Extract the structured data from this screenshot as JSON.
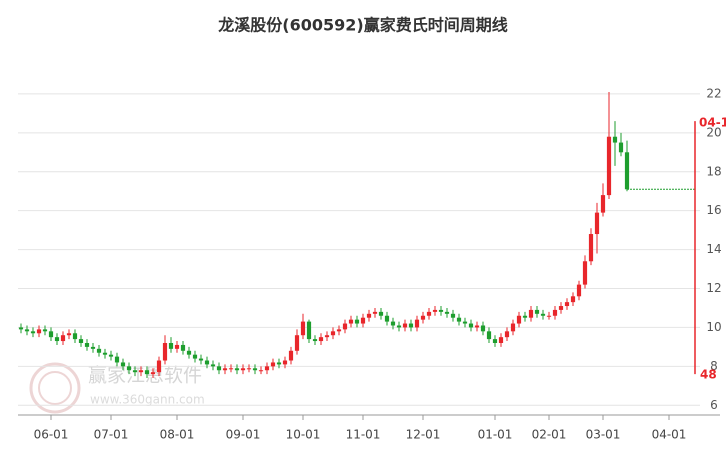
{
  "chart_data": {
    "type": "candlestick",
    "title": "龙溪股份(600592)赢家费氏时间周期线",
    "categories": [
      null,
      null,
      null,
      null,
      null,
      "06-01",
      null,
      null,
      null,
      null,
      null,
      null,
      null,
      null,
      null,
      "07-01",
      null,
      null,
      null,
      null,
      null,
      null,
      null,
      null,
      null,
      null,
      "08-01",
      null,
      null,
      null,
      null,
      null,
      null,
      null,
      null,
      null,
      null,
      "09-01",
      null,
      null,
      null,
      null,
      null,
      null,
      null,
      null,
      null,
      "10-01",
      null,
      null,
      null,
      null,
      null,
      null,
      null,
      null,
      null,
      "11-01",
      null,
      null,
      null,
      null,
      null,
      null,
      null,
      null,
      null,
      "12-01",
      null,
      null,
      null,
      null,
      null,
      null,
      null,
      null,
      null,
      null,
      null,
      "01-01",
      null,
      null,
      null,
      null,
      null,
      null,
      null,
      null,
      "02-01",
      null,
      null,
      null,
      null,
      null,
      null,
      null,
      null,
      "03-01",
      null,
      null,
      null,
      null
    ],
    "xticks": [
      {
        "value": 5,
        "label": "06-01"
      },
      {
        "value": 15,
        "label": "07-01"
      },
      {
        "value": 26,
        "label": "08-01"
      },
      {
        "value": 37,
        "label": "09-01"
      },
      {
        "value": 47,
        "label": "10-01"
      },
      {
        "value": 57,
        "label": "11-01"
      },
      {
        "value": 67,
        "label": "12-01"
      },
      {
        "value": 79,
        "label": "01-01"
      },
      {
        "value": 88,
        "label": "02-01"
      },
      {
        "value": 97,
        "label": "03-01"
      },
      {
        "value": 108,
        "label": "04-01"
      }
    ],
    "xlim": [
      -0.5,
      112.5
    ],
    "open": [
      10.0,
      9.9,
      9.8,
      9.7,
      9.9,
      9.8,
      9.5,
      9.3,
      9.6,
      9.7,
      9.4,
      9.2,
      9.0,
      8.9,
      8.7,
      8.6,
      8.5,
      8.2,
      8.0,
      7.8,
      7.7,
      7.8,
      7.6,
      7.7,
      8.3,
      9.2,
      8.9,
      9.1,
      8.8,
      8.6,
      8.4,
      8.3,
      8.1,
      8.0,
      7.8,
      7.9,
      7.9,
      7.8,
      7.9,
      7.9,
      7.8,
      7.8,
      8.0,
      8.2,
      8.1,
      8.3,
      8.8,
      9.6,
      10.3,
      9.4,
      9.3,
      9.5,
      9.6,
      9.8,
      9.9,
      10.2,
      10.4,
      10.2,
      10.5,
      10.7,
      10.8,
      10.6,
      10.3,
      10.1,
      10.0,
      10.2,
      10.0,
      10.4,
      10.6,
      10.8,
      10.9,
      10.8,
      10.7,
      10.5,
      10.3,
      10.2,
      10.0,
      10.1,
      9.8,
      9.4,
      9.2,
      9.5,
      9.8,
      10.2,
      10.6,
      10.5,
      10.9,
      10.7,
      10.6,
      10.6,
      10.9,
      11.1,
      11.3,
      11.6,
      12.2,
      13.4,
      14.8,
      15.9,
      16.8,
      19.8,
      19.5,
      19.0
    ],
    "high": [
      10.2,
      10.1,
      10.0,
      10.1,
      10.1,
      10.0,
      9.7,
      9.8,
      9.9,
      9.9,
      9.6,
      9.4,
      9.2,
      9.1,
      8.9,
      8.8,
      8.7,
      8.4,
      8.2,
      8.0,
      8.0,
      8.0,
      7.9,
      8.5,
      9.6,
      9.5,
      9.3,
      9.3,
      9.0,
      8.8,
      8.6,
      8.5,
      8.3,
      8.2,
      8.1,
      8.1,
      8.1,
      8.1,
      8.1,
      8.1,
      8.0,
      8.2,
      8.4,
      8.4,
      8.5,
      9.0,
      9.9,
      10.7,
      10.4,
      9.6,
      9.7,
      9.8,
      10.0,
      10.1,
      10.4,
      10.6,
      10.6,
      10.7,
      10.9,
      11.0,
      11.0,
      10.8,
      10.5,
      10.3,
      10.4,
      10.4,
      10.6,
      10.8,
      11.0,
      11.1,
      11.1,
      11.0,
      10.9,
      10.7,
      10.5,
      10.4,
      10.3,
      10.3,
      10.0,
      9.6,
      9.7,
      10.0,
      10.4,
      10.8,
      10.8,
      11.1,
      11.1,
      10.9,
      10.8,
      11.1,
      11.3,
      11.5,
      11.8,
      12.4,
      13.7,
      15.1,
      16.4,
      17.4,
      22.1,
      20.6,
      20.0,
      19.6
    ],
    "low": [
      9.7,
      9.6,
      9.5,
      9.5,
      9.6,
      9.3,
      9.1,
      9.1,
      9.4,
      9.2,
      9.0,
      8.8,
      8.7,
      8.5,
      8.4,
      8.3,
      8.0,
      7.8,
      7.6,
      7.5,
      7.5,
      7.4,
      7.4,
      7.5,
      8.1,
      8.7,
      8.7,
      8.6,
      8.4,
      8.2,
      8.1,
      7.9,
      7.8,
      7.6,
      7.6,
      7.7,
      7.6,
      7.6,
      7.7,
      7.6,
      7.6,
      7.6,
      7.8,
      7.9,
      7.9,
      8.1,
      8.6,
      9.4,
      9.2,
      9.1,
      9.1,
      9.3,
      9.4,
      9.6,
      9.7,
      10.0,
      10.0,
      10.0,
      10.3,
      10.5,
      10.4,
      10.1,
      9.9,
      9.8,
      9.8,
      9.8,
      9.8,
      10.2,
      10.4,
      10.6,
      10.6,
      10.5,
      10.3,
      10.1,
      10.0,
      9.8,
      9.8,
      9.6,
      9.2,
      9.0,
      9.0,
      9.3,
      9.6,
      10.0,
      10.3,
      10.3,
      10.5,
      10.4,
      10.4,
      10.4,
      10.7,
      10.9,
      11.1,
      11.4,
      12.0,
      13.2,
      13.8,
      15.7,
      16.6,
      18.3,
      18.8,
      17.0
    ],
    "close": [
      9.9,
      9.8,
      9.7,
      9.9,
      9.8,
      9.5,
      9.3,
      9.6,
      9.7,
      9.4,
      9.2,
      9.0,
      8.9,
      8.7,
      8.6,
      8.5,
      8.2,
      8.0,
      7.8,
      7.7,
      7.8,
      7.6,
      7.7,
      8.3,
      9.2,
      8.9,
      9.1,
      8.8,
      8.6,
      8.4,
      8.3,
      8.1,
      8.0,
      7.8,
      7.9,
      7.9,
      7.8,
      7.9,
      7.9,
      7.8,
      7.8,
      8.0,
      8.2,
      8.1,
      8.3,
      8.8,
      9.6,
      10.3,
      9.4,
      9.3,
      9.5,
      9.6,
      9.8,
      9.9,
      10.2,
      10.4,
      10.2,
      10.5,
      10.7,
      10.8,
      10.6,
      10.3,
      10.1,
      10.0,
      10.2,
      10.0,
      10.4,
      10.6,
      10.8,
      10.9,
      10.8,
      10.7,
      10.5,
      10.3,
      10.2,
      10.0,
      10.1,
      9.8,
      9.4,
      9.2,
      9.5,
      9.8,
      10.2,
      10.6,
      10.5,
      10.9,
      10.7,
      10.6,
      10.6,
      10.9,
      11.1,
      11.3,
      11.6,
      12.2,
      13.4,
      14.8,
      15.9,
      16.8,
      19.8,
      19.5,
      19.0,
      17.1
    ],
    "up_color": "#e8262b",
    "down_color": "#1e9e2e",
    "ylim": [
      5.5,
      24
    ],
    "yticks": [
      6,
      8,
      10,
      12,
      14,
      16,
      18,
      20,
      22
    ],
    "grid": true,
    "cycle_marker": {
      "top": 20.6,
      "bottom": 7.6,
      "top_label": "04-1",
      "bottom_label": "48",
      "color": "#e8262b"
    },
    "watermark": {
      "text": "赢家江恩软件",
      "url": "www.360gann.com"
    }
  }
}
